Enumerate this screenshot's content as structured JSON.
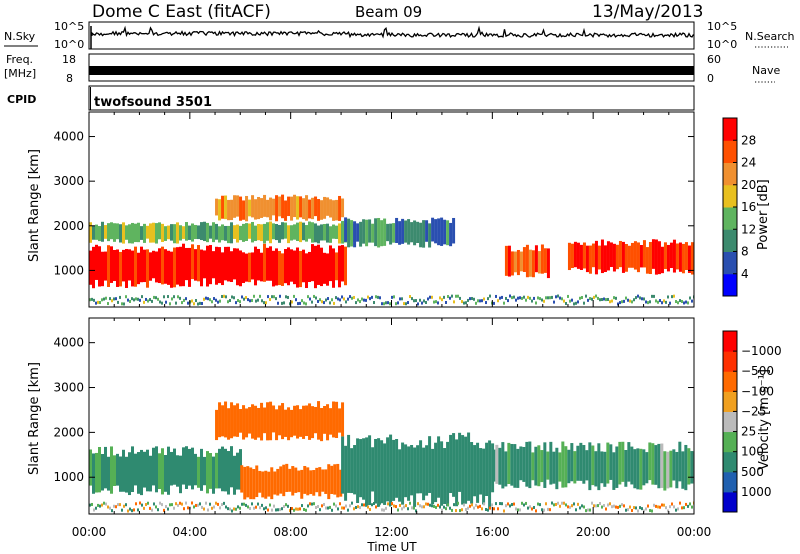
{
  "header": {
    "station": "Dome C East (fitACF)",
    "beam": "Beam 09",
    "date": "13/May/2013"
  },
  "top_panels": {
    "nsky_label": "N.Sky",
    "nsky_ticks": [
      "10^5",
      "10^0"
    ],
    "nsearch_label": "N.Search",
    "freq_label_1": "Freq.",
    "freq_label_2": "[MHz]",
    "freq_ticks": [
      "18",
      "8"
    ],
    "nave_label": "Nave",
    "nave_ticks": [
      "60",
      "0"
    ],
    "cpid_label": "CPID",
    "cpid_value": "twofsound 3501"
  },
  "colors": {
    "power_scale": [
      "#0000ff",
      "#2a4fb0",
      "#3c8a6e",
      "#5fb45f",
      "#e8c020",
      "#f09030",
      "#ff5000",
      "#ff0000"
    ],
    "velocity_scale": [
      "#0000cc",
      "#2060b0",
      "#2f8a70",
      "#55b055",
      "#bbbbbb",
      "#f0a020",
      "#ff6a00",
      "#ff3000",
      "#ff0000"
    ]
  },
  "chart_data": [
    {
      "type": "heatmap",
      "title": "Power",
      "xlabel": "Time UT",
      "ylabel": "Slant Range [km]",
      "x_ticks": [
        "00:00",
        "04:00",
        "08:00",
        "12:00",
        "16:00",
        "20:00",
        "00:00"
      ],
      "y_ticks": [
        "1000",
        "2000",
        "3000",
        "4000"
      ],
      "xlim_hours": [
        0,
        24
      ],
      "ylim_km": [
        180,
        4550
      ],
      "colorbar": {
        "label": "Power [dB]",
        "ticks": [
          "4",
          "8",
          "12",
          "16",
          "20",
          "24",
          "28"
        ]
      },
      "regions": [
        {
          "t0": 0,
          "t1": 10.2,
          "r0": 600,
          "r1": 1600,
          "value_db": 30
        },
        {
          "t0": 0,
          "t1": 10.5,
          "r0": 1600,
          "r1": 2100,
          "value_db": 14
        },
        {
          "t0": 5,
          "t1": 10,
          "r0": 2100,
          "r1": 2700,
          "value_db": 22
        },
        {
          "t0": 10,
          "t1": 14.5,
          "r0": 1500,
          "r1": 2200,
          "value_db": 10
        },
        {
          "t0": 16.5,
          "t1": 18.2,
          "r0": 800,
          "r1": 1600,
          "value_db": 26
        },
        {
          "t0": 19,
          "t1": 24,
          "r0": 900,
          "r1": 1700,
          "value_db": 28
        }
      ]
    },
    {
      "type": "heatmap",
      "title": "Velocity",
      "xlabel": "Time UT",
      "ylabel": "Slant Range [km]",
      "x_ticks": [
        "00:00",
        "04:00",
        "08:00",
        "12:00",
        "16:00",
        "20:00",
        "00:00"
      ],
      "y_ticks": [
        "1000",
        "2000",
        "3000",
        "4000"
      ],
      "xlim_hours": [
        0,
        24
      ],
      "ylim_km": [
        180,
        4550
      ],
      "colorbar": {
        "label": "Velocity [m s⁻¹]",
        "ticks": [
          "1000",
          "500",
          "100",
          "25",
          "−25",
          "−100",
          "−500",
          "−1000"
        ]
      },
      "regions": [
        {
          "t0": 0,
          "t1": 6,
          "r0": 600,
          "r1": 1700,
          "value_ms": 100
        },
        {
          "t0": 6,
          "t1": 10,
          "r0": 500,
          "r1": 1300,
          "value_ms": -150
        },
        {
          "t0": 5,
          "t1": 10,
          "r0": 1800,
          "r1": 2700,
          "value_ms": -200
        },
        {
          "t0": 10,
          "t1": 16,
          "r0": 300,
          "r1": 2000,
          "value_ms": 120
        },
        {
          "t0": 16,
          "t1": 24,
          "r0": 700,
          "r1": 1800,
          "value_ms": 80
        }
      ]
    }
  ]
}
